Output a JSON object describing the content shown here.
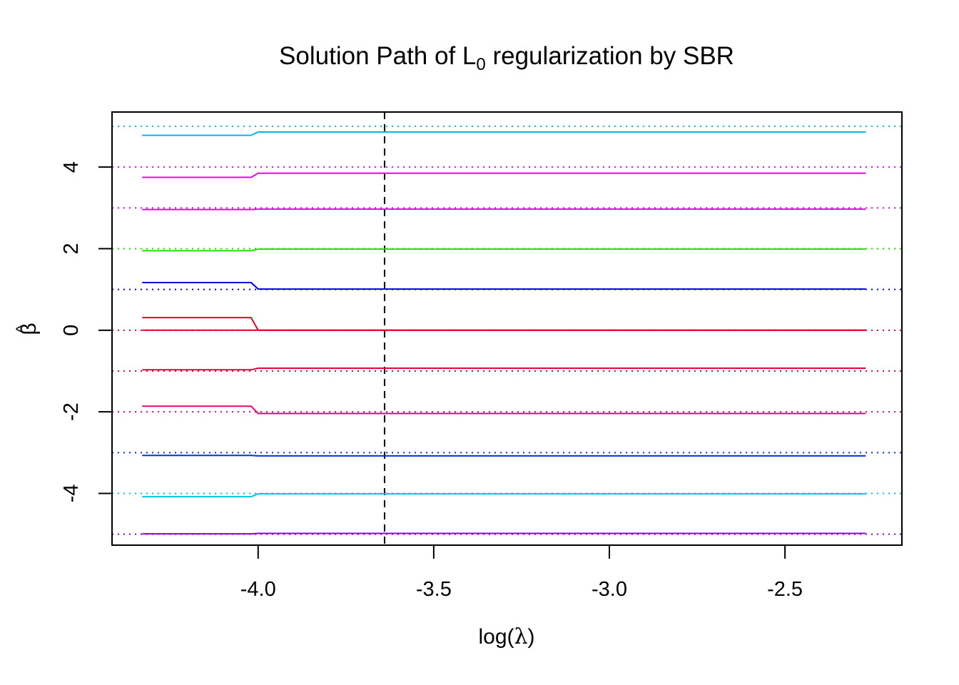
{
  "chart_data": {
    "type": "line",
    "title": {
      "prefix": "Solution Path of L",
      "subscript": "0",
      "suffix": " regularization by SBR"
    },
    "xlabel": {
      "prefix": "log(",
      "symbol": "λ",
      "suffix": ")"
    },
    "ylabel": {
      "symbol": "β",
      "hat": "^"
    },
    "xlim": [
      -4.416,
      -2.167
    ],
    "ylim": [
      -5.268,
      5.35
    ],
    "x_ticks": [
      -4.0,
      -3.5,
      -3.0,
      -2.5
    ],
    "x_tick_labels": [
      "-4.0",
      "-3.5",
      "-3.0",
      "-2.5"
    ],
    "y_ticks": [
      -4,
      -2,
      0,
      2,
      4
    ],
    "y_tick_labels": [
      "-4",
      "-2",
      "0",
      "2",
      "4"
    ],
    "vline": {
      "x": -3.64,
      "style": "dashed",
      "color": "#000000"
    },
    "grid": false,
    "legend": "none",
    "hlines": [
      {
        "y": 5,
        "color": "#00C5E8"
      },
      {
        "y": 4,
        "color": "#F000F0"
      },
      {
        "y": 3,
        "color": "#F000F0"
      },
      {
        "y": 2,
        "color": "#22E000"
      },
      {
        "y": 1,
        "color": "#0000E8"
      },
      {
        "y": 0,
        "color": "#E8002A"
      },
      {
        "y": -1,
        "color": "#E8003C"
      },
      {
        "y": -2,
        "color": "#F0007C"
      },
      {
        "y": -3,
        "color": "#0030F0"
      },
      {
        "y": -4,
        "color": "#00C5E8"
      },
      {
        "y": -5,
        "color": "#8800F0"
      }
    ],
    "series": [
      {
        "color": "#00B8E8",
        "x": [
          -4.33,
          -4.02,
          -4.0,
          -2.27
        ],
        "y": [
          4.78,
          4.78,
          4.86,
          4.86
        ]
      },
      {
        "color": "#F000F0",
        "x": [
          -4.33,
          -4.02,
          -4.0,
          -2.27
        ],
        "y": [
          3.75,
          3.75,
          3.85,
          3.85
        ]
      },
      {
        "color": "#E800E8",
        "x": [
          -4.33,
          -4.02,
          -4.0,
          -2.27
        ],
        "y": [
          2.96,
          2.96,
          2.97,
          2.97
        ]
      },
      {
        "color": "#22E000",
        "x": [
          -4.33,
          -4.02,
          -4.0,
          -2.27
        ],
        "y": [
          1.95,
          1.95,
          1.99,
          1.99
        ]
      },
      {
        "color": "#0000E0",
        "x": [
          -4.33,
          -4.02,
          -4.0,
          -2.27
        ],
        "y": [
          1.17,
          1.17,
          1.01,
          1.01
        ]
      },
      {
        "color": "#E8002A",
        "x": [
          -4.33,
          -4.02,
          -4.0,
          -2.27
        ],
        "y": [
          0.31,
          0.31,
          0.0,
          0.0
        ]
      },
      {
        "color": "#E0002A",
        "x": [
          -4.33,
          -4.02,
          -4.0,
          -2.27
        ],
        "y": [
          0.0,
          0.0,
          0.0,
          0.0
        ]
      },
      {
        "color": "#E8003C",
        "x": [
          -4.33,
          -4.02,
          -4.0,
          -2.27
        ],
        "y": [
          -0.97,
          -0.97,
          -0.93,
          -0.93
        ]
      },
      {
        "color": "#F0007C",
        "x": [
          -4.33,
          -4.02,
          -4.0,
          -2.27
        ],
        "y": [
          -1.86,
          -1.86,
          -2.04,
          -2.04
        ]
      },
      {
        "color": "#0030E8",
        "x": [
          -4.33,
          -4.02,
          -4.0,
          -2.27
        ],
        "y": [
          -3.07,
          -3.07,
          -3.08,
          -3.08
        ]
      },
      {
        "color": "#00C5E8",
        "x": [
          -4.33,
          -4.02,
          -4.0,
          -2.27
        ],
        "y": [
          -4.08,
          -4.08,
          -4.01,
          -4.01
        ]
      },
      {
        "color": "#8800F0",
        "x": [
          -4.33,
          -4.02,
          -4.0,
          -2.27
        ],
        "y": [
          -4.99,
          -4.99,
          -4.98,
          -4.98
        ]
      }
    ]
  }
}
